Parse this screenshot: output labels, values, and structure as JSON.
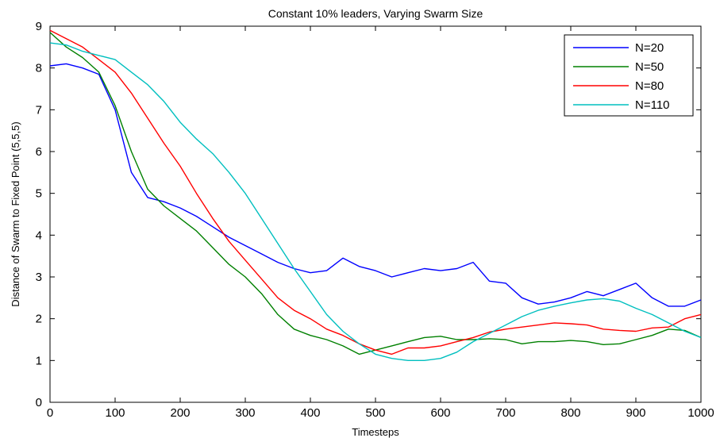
{
  "chart_data": {
    "type": "line",
    "title": "Constant 10% leaders, Varying Swarm Size",
    "xlabel": "Timesteps",
    "ylabel": "Distance of Swarm to Fixed Point (5,5,5)",
    "xlim": [
      0,
      1000
    ],
    "ylim": [
      0,
      9
    ],
    "xticks": [
      0,
      100,
      200,
      300,
      400,
      500,
      600,
      700,
      800,
      900,
      1000
    ],
    "yticks": [
      0,
      1,
      2,
      3,
      4,
      5,
      6,
      7,
      8,
      9
    ],
    "grid": false,
    "legend_position": "top-right",
    "x": [
      0,
      25,
      50,
      75,
      100,
      125,
      150,
      175,
      200,
      225,
      250,
      275,
      300,
      325,
      350,
      375,
      400,
      425,
      450,
      475,
      500,
      525,
      550,
      575,
      600,
      625,
      650,
      675,
      700,
      725,
      750,
      775,
      800,
      825,
      850,
      875,
      900,
      925,
      950,
      975,
      1000
    ],
    "series": [
      {
        "name": "N=20",
        "color": "#0000ff",
        "values": [
          8.05,
          8.1,
          8.0,
          7.85,
          7.0,
          5.5,
          4.9,
          4.8,
          4.65,
          4.45,
          4.2,
          3.95,
          3.75,
          3.55,
          3.35,
          3.2,
          3.1,
          3.15,
          3.45,
          3.25,
          3.15,
          3.0,
          3.1,
          3.2,
          3.15,
          3.2,
          3.35,
          2.9,
          2.85,
          2.5,
          2.35,
          2.4,
          2.5,
          2.65,
          2.55,
          2.7,
          2.85,
          2.5,
          2.3,
          2.3,
          2.45
        ]
      },
      {
        "name": "N=50",
        "color": "#008000",
        "values": [
          8.85,
          8.5,
          8.25,
          7.9,
          7.1,
          6.0,
          5.1,
          4.7,
          4.4,
          4.1,
          3.7,
          3.3,
          3.0,
          2.6,
          2.1,
          1.75,
          1.6,
          1.5,
          1.35,
          1.15,
          1.25,
          1.35,
          1.45,
          1.55,
          1.58,
          1.5,
          1.5,
          1.52,
          1.5,
          1.4,
          1.45,
          1.45,
          1.48,
          1.45,
          1.38,
          1.4,
          1.5,
          1.6,
          1.75,
          1.72,
          1.55
        ]
      },
      {
        "name": "N=80",
        "color": "#ff0000",
        "values": [
          8.9,
          8.7,
          8.5,
          8.2,
          7.9,
          7.4,
          6.8,
          6.2,
          5.65,
          5.0,
          4.4,
          3.85,
          3.4,
          2.95,
          2.5,
          2.2,
          2.0,
          1.75,
          1.6,
          1.4,
          1.25,
          1.15,
          1.3,
          1.3,
          1.35,
          1.45,
          1.55,
          1.68,
          1.75,
          1.8,
          1.85,
          1.9,
          1.88,
          1.85,
          1.75,
          1.72,
          1.7,
          1.78,
          1.8,
          2.0,
          2.1
        ]
      },
      {
        "name": "N=110",
        "color": "#00bfbf",
        "values": [
          8.6,
          8.55,
          8.4,
          8.3,
          8.2,
          7.9,
          7.6,
          7.2,
          6.7,
          6.3,
          5.95,
          5.5,
          5.0,
          4.4,
          3.8,
          3.2,
          2.65,
          2.1,
          1.7,
          1.4,
          1.15,
          1.05,
          1.0,
          1.0,
          1.05,
          1.2,
          1.45,
          1.65,
          1.85,
          2.05,
          2.2,
          2.3,
          2.38,
          2.45,
          2.48,
          2.42,
          2.25,
          2.1,
          1.9,
          1.7,
          1.55
        ]
      }
    ]
  }
}
